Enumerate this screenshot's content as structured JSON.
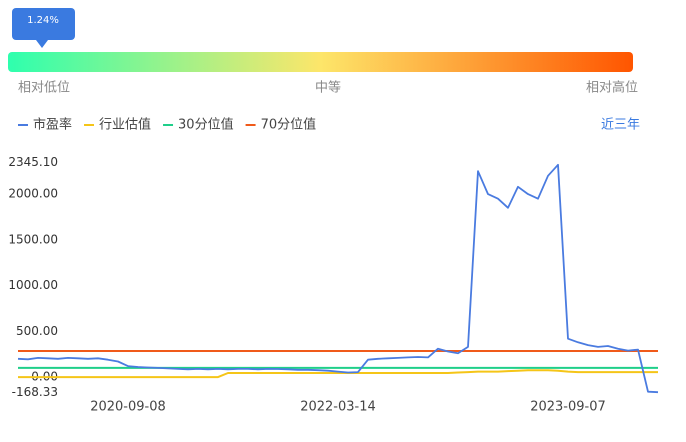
{
  "gauge": {
    "badge": "1.24%",
    "labels": [
      "相对低位",
      "中等",
      "相对高位"
    ]
  },
  "period": "近三年",
  "chart_data": {
    "type": "line",
    "categories": [
      null,
      null,
      null,
      null,
      null,
      null,
      null,
      null,
      null,
      null,
      null,
      "2020-09-08",
      null,
      null,
      null,
      null,
      null,
      null,
      null,
      null,
      null,
      null,
      null,
      null,
      null,
      null,
      null,
      null,
      null,
      null,
      null,
      null,
      "2022-03-14",
      null,
      null,
      null,
      null,
      null,
      null,
      null,
      null,
      null,
      null,
      null,
      null,
      null,
      null,
      null,
      null,
      null,
      null,
      null,
      null,
      null,
      null,
      "2023-09-07",
      null,
      null,
      null,
      null,
      null,
      null,
      null,
      null,
      null
    ],
    "series": [
      {
        "name": "市盈率",
        "color": "#4a7be0",
        "values": [
          200,
          195,
          210,
          205,
          200,
          210,
          205,
          200,
          205,
          190,
          170,
          120,
          110,
          105,
          100,
          95,
          90,
          85,
          90,
          85,
          90,
          85,
          90,
          90,
          85,
          90,
          88,
          85,
          80,
          80,
          75,
          70,
          60,
          50,
          55,
          190,
          200,
          205,
          210,
          215,
          220,
          215,
          310,
          280,
          260,
          330,
          2250,
          2000,
          1950,
          1850,
          2080,
          2000,
          1950,
          2200,
          2320,
          420,
          380,
          350,
          330,
          340,
          310,
          290,
          300,
          -160,
          -165
        ]
      },
      {
        "name": "行业估值",
        "color": "#f5c518",
        "values": [
          0,
          0,
          0,
          0,
          0,
          0,
          0,
          0,
          0,
          0,
          0,
          0,
          0,
          0,
          0,
          0,
          0,
          0,
          0,
          0,
          0,
          45,
          45,
          45,
          45,
          45,
          45,
          45,
          45,
          45,
          45,
          45,
          45,
          45,
          45,
          45,
          45,
          45,
          45,
          45,
          45,
          45,
          45,
          45,
          50,
          55,
          60,
          60,
          60,
          65,
          70,
          75,
          75,
          75,
          70,
          60,
          55,
          55,
          55,
          55,
          55,
          55,
          55,
          55,
          55
        ]
      },
      {
        "name": "30分位值",
        "color": "#1fcf8a",
        "values": [
          100,
          100,
          100,
          100,
          100,
          100,
          100,
          100,
          100,
          100,
          100,
          100,
          100,
          100,
          100,
          100,
          100,
          100,
          100,
          100,
          100,
          100,
          100,
          100,
          100,
          100,
          100,
          100,
          100,
          100,
          100,
          100,
          100,
          100,
          100,
          100,
          100,
          100,
          100,
          100,
          100,
          100,
          100,
          100,
          100,
          100,
          100,
          100,
          100,
          100,
          100,
          100,
          100,
          100,
          100,
          100,
          100,
          100,
          100,
          100,
          100,
          100,
          100,
          100,
          100
        ]
      },
      {
        "name": "70分位值",
        "color": "#f05a1a",
        "values": [
          285,
          285,
          285,
          285,
          285,
          285,
          285,
          285,
          285,
          285,
          285,
          285,
          285,
          285,
          285,
          285,
          285,
          285,
          285,
          285,
          285,
          285,
          285,
          285,
          285,
          285,
          285,
          285,
          285,
          285,
          285,
          285,
          285,
          285,
          285,
          285,
          285,
          285,
          285,
          285,
          285,
          285,
          285,
          285,
          285,
          285,
          285,
          285,
          285,
          285,
          285,
          285,
          285,
          285,
          285,
          285,
          285,
          285,
          285,
          285,
          285,
          285,
          285,
          285,
          285
        ]
      }
    ],
    "ylim": [
      -168.33,
      2345.1
    ],
    "yticks": [
      {
        "value": -168.33,
        "label": "-168.33"
      },
      {
        "value": 0,
        "label": "0.00"
      },
      {
        "value": 500,
        "label": "500.00"
      },
      {
        "value": 1000,
        "label": "1000.00"
      },
      {
        "value": 1500,
        "label": "1500.00"
      },
      {
        "value": 2000,
        "label": "2000.00"
      },
      {
        "value": 2345.1,
        "label": "2345.10"
      }
    ],
    "grid": false
  }
}
